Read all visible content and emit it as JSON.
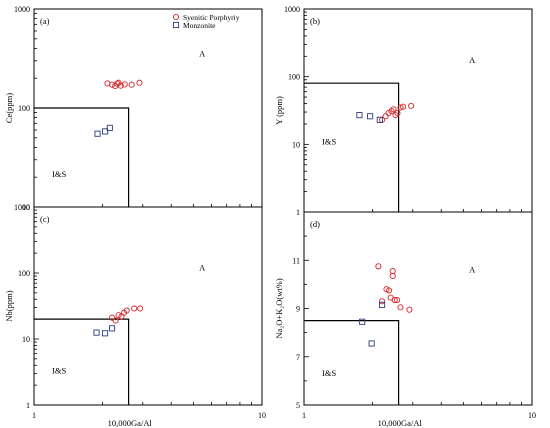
{
  "figure": {
    "legend": [
      {
        "name": "Syenitic Porphyriy",
        "marker": "circle",
        "color": "#d9252a"
      },
      {
        "name": "Monzonite",
        "marker": "square",
        "color": "#2b3a7e"
      }
    ],
    "colors": {
      "syenitic": "#d9252a",
      "monzonite": "#2b3a7e",
      "axis": "#000000"
    }
  },
  "chart_data": [
    {
      "type": "scatter",
      "panel_label": "(a)",
      "xlabel": "",
      "ylabel": "Ce(ppm)",
      "xscale": "log",
      "yscale": "log",
      "xlim": [
        1,
        10
      ],
      "ylim": [
        10,
        1000
      ],
      "x_ticks": [],
      "y_ticks": [
        "10",
        "100",
        "1000"
      ],
      "field_labels": [
        {
          "text": "A",
          "x": 5.3,
          "y": 330
        },
        {
          "text": "I&S",
          "x": 1.2,
          "y": 20
        }
      ],
      "boundary": [
        [
          1,
          100
        ],
        [
          2.6,
          100
        ],
        [
          2.6,
          10
        ]
      ],
      "series": [
        {
          "name": "Syenitic Porphyriy",
          "marker": "circle",
          "points": [
            [
              2.1,
              177
            ],
            [
              2.2,
              172
            ],
            [
              2.27,
              167
            ],
            [
              2.32,
              176
            ],
            [
              2.35,
              180
            ],
            [
              2.4,
              168
            ],
            [
              2.5,
              173
            ],
            [
              2.68,
              172
            ],
            [
              2.9,
              180
            ]
          ]
        },
        {
          "name": "Monzonite",
          "marker": "square",
          "points": [
            [
              1.9,
              55
            ],
            [
              2.05,
              58
            ],
            [
              2.15,
              63
            ]
          ]
        }
      ]
    },
    {
      "type": "scatter",
      "panel_label": "(b)",
      "xlabel": "",
      "ylabel": "Y (ppm)",
      "xscale": "log",
      "yscale": "log",
      "xlim": [
        1,
        10
      ],
      "ylim": [
        1,
        1000
      ],
      "x_ticks": [],
      "y_ticks": [
        "1",
        "10",
        "100",
        "1000"
      ],
      "field_labels": [
        {
          "text": "A",
          "x": 5.3,
          "y": 160
        },
        {
          "text": "I&S",
          "x": 1.2,
          "y": 10
        }
      ],
      "boundary": [
        [
          1,
          80
        ],
        [
          2.6,
          80
        ],
        [
          2.6,
          1
        ]
      ],
      "series": [
        {
          "name": "Syenitic Porphyriy",
          "marker": "circle",
          "points": [
            [
              2.2,
              23
            ],
            [
              2.28,
              26
            ],
            [
              2.35,
              29
            ],
            [
              2.42,
              31
            ],
            [
              2.47,
              33
            ],
            [
              2.52,
              27
            ],
            [
              2.57,
              29
            ],
            [
              2.65,
              35
            ],
            [
              2.72,
              36
            ],
            [
              2.95,
              37
            ]
          ]
        },
        {
          "name": "Monzonite",
          "marker": "square",
          "points": [
            [
              1.75,
              27
            ],
            [
              1.95,
              26
            ],
            [
              2.15,
              23
            ]
          ]
        }
      ]
    },
    {
      "type": "scatter",
      "panel_label": "(c)",
      "xlabel": "10,000Ga/Al",
      "ylabel": "Nb(ppm)",
      "xscale": "log",
      "yscale": "log",
      "xlim": [
        1,
        10
      ],
      "ylim": [
        1,
        1000
      ],
      "x_ticks": [
        "1",
        "10"
      ],
      "y_ticks": [
        "1",
        "10",
        "100",
        "1000"
      ],
      "field_labels": [
        {
          "text": "A",
          "x": 5.3,
          "y": 110
        },
        {
          "text": "I&S",
          "x": 1.2,
          "y": 3
        }
      ],
      "boundary": [
        [
          1,
          20
        ],
        [
          2.6,
          20
        ],
        [
          2.6,
          1
        ]
      ],
      "series": [
        {
          "name": "Syenitic Porphyriy",
          "marker": "circle",
          "points": [
            [
              2.2,
              21
            ],
            [
              2.28,
              19
            ],
            [
              2.35,
              23
            ],
            [
              2.42,
              22
            ],
            [
              2.48,
              25
            ],
            [
              2.55,
              27
            ],
            [
              2.75,
              29
            ],
            [
              2.92,
              29
            ]
          ]
        },
        {
          "name": "Monzonite",
          "marker": "square",
          "points": [
            [
              1.88,
              12.5
            ],
            [
              2.05,
              12.2
            ],
            [
              2.2,
              14.5
            ]
          ]
        }
      ]
    },
    {
      "type": "scatter",
      "panel_label": "(d)",
      "xlabel": "10,000Ga/Al",
      "ylabel": "Na₂O+K₂O(wt%)",
      "xscale": "log",
      "yscale": "linear",
      "xlim": [
        1,
        10
      ],
      "ylim": [
        5,
        13
      ],
      "x_ticks": [
        "1",
        "10"
      ],
      "y_ticks": [
        "5",
        "7",
        "9",
        "11"
      ],
      "field_labels": [
        {
          "text": "A",
          "x": 5.3,
          "y": 10.5
        },
        {
          "text": "I&S",
          "x": 1.2,
          "y": 6.2
        }
      ],
      "boundary": [
        [
          1,
          8.5
        ],
        [
          2.6,
          8.5
        ],
        [
          2.6,
          5
        ]
      ],
      "series": [
        {
          "name": "Syenitic Porphyriy",
          "marker": "circle",
          "points": [
            [
              2.12,
              10.75
            ],
            [
              2.3,
              9.8
            ],
            [
              2.36,
              9.75
            ],
            [
              2.4,
              9.45
            ],
            [
              2.45,
              10.55
            ],
            [
              2.45,
              10.35
            ],
            [
              2.5,
              9.35
            ],
            [
              2.56,
              9.35
            ],
            [
              2.65,
              9.05
            ],
            [
              2.9,
              8.95
            ],
            [
              2.2,
              9.3
            ]
          ]
        },
        {
          "name": "Monzonite",
          "marker": "square",
          "points": [
            [
              1.8,
              8.45
            ],
            [
              1.98,
              7.55
            ],
            [
              2.2,
              9.15
            ]
          ]
        }
      ]
    }
  ]
}
